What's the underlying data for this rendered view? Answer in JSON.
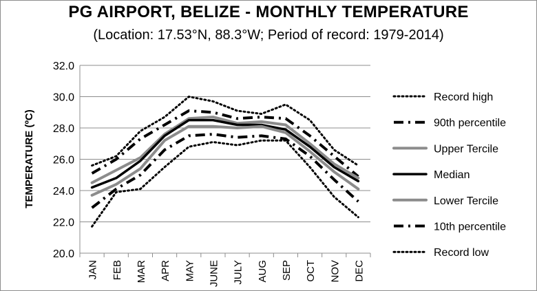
{
  "header": {
    "title": "PG AIRPORT, BELIZE - MONTHLY TEMPERATURE",
    "subtitle": "(Location: 17.53°N, 88.3°W; Period of record: 1979-2014)"
  },
  "chart_data": {
    "type": "line",
    "title": "PG AIRPORT, BELIZE - MONTHLY TEMPERATURE",
    "subtitle": "(Location: 17.53°N, 88.3°W; Period of record: 1979-2014)",
    "xlabel": "",
    "ylabel": "TEMPERATURE (ºC)",
    "ylim": [
      20,
      32
    ],
    "yticks": [
      "20.0",
      "22.0",
      "24.0",
      "26.0",
      "28.0",
      "30.0",
      "32.0"
    ],
    "grid": true,
    "legend_position": "right",
    "categories": [
      "JAN",
      "FEB",
      "MAR",
      "APR",
      "MAY",
      "JUNE",
      "JULY",
      "AUG",
      "SEP",
      "OCT",
      "NOV",
      "DEC"
    ],
    "series": [
      {
        "name": "Record high",
        "color": "#000000",
        "style": "dotted",
        "values": [
          25.6,
          26.2,
          27.8,
          28.7,
          30.0,
          29.7,
          29.1,
          28.9,
          29.5,
          28.5,
          26.6,
          25.6
        ]
      },
      {
        "name": "90th percentile",
        "color": "#000000",
        "style": "dashdot",
        "values": [
          25.1,
          26.0,
          27.3,
          28.2,
          29.1,
          29.0,
          28.6,
          28.7,
          28.6,
          27.5,
          26.2,
          24.9
        ]
      },
      {
        "name": "Upper Tercile",
        "color": "#8c8c8c",
        "style": "solid",
        "values": [
          24.5,
          25.3,
          26.1,
          27.6,
          28.6,
          28.7,
          28.3,
          28.4,
          28.2,
          27.0,
          25.7,
          24.8
        ]
      },
      {
        "name": "Median",
        "color": "#000000",
        "style": "solid",
        "values": [
          24.2,
          24.8,
          25.9,
          27.5,
          28.5,
          28.5,
          28.2,
          28.2,
          27.9,
          26.8,
          25.5,
          24.6
        ]
      },
      {
        "name": "Lower Tercile",
        "color": "#8c8c8c",
        "style": "solid",
        "values": [
          23.7,
          24.4,
          25.4,
          27.2,
          28.1,
          28.1,
          28.0,
          28.1,
          27.7,
          26.5,
          25.2,
          24.1
        ]
      },
      {
        "name": "10th percentile",
        "color": "#000000",
        "style": "dashdot",
        "values": [
          22.9,
          24.1,
          25.0,
          26.6,
          27.5,
          27.6,
          27.4,
          27.5,
          27.3,
          26.2,
          24.7,
          23.3
        ]
      },
      {
        "name": "Record low",
        "color": "#000000",
        "style": "dotted",
        "values": [
          21.7,
          23.9,
          24.1,
          25.5,
          26.8,
          27.1,
          26.9,
          27.2,
          27.2,
          25.5,
          23.6,
          22.3
        ]
      }
    ]
  }
}
